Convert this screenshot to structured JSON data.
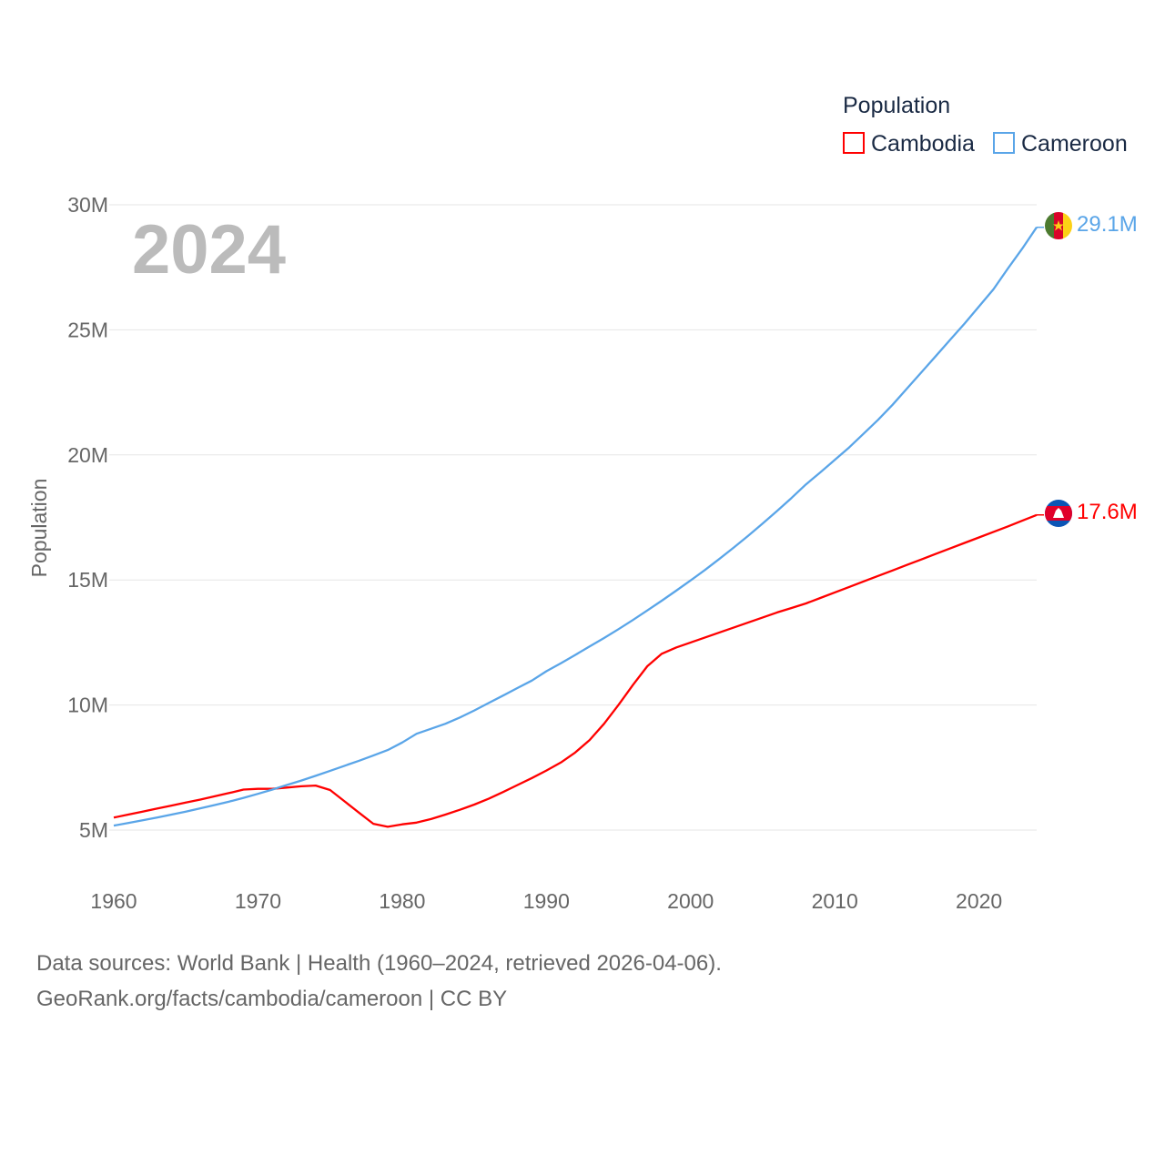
{
  "chart_data": {
    "type": "line",
    "ylabel": "Population",
    "xlabel": "",
    "year_watermark": "2024",
    "legend": {
      "title": "Population",
      "placement": "top-right"
    },
    "xlim": [
      1960,
      2024
    ],
    "ylim": [
      5000000,
      30000000
    ],
    "x_ticks": [
      "1960",
      "1970",
      "1980",
      "1990",
      "2000",
      "2010",
      "2020"
    ],
    "y_ticks": [
      {
        "value": 5000000,
        "label": "5M"
      },
      {
        "value": 10000000,
        "label": "10M"
      },
      {
        "value": 15000000,
        "label": "15M"
      },
      {
        "value": 20000000,
        "label": "20M"
      },
      {
        "value": 25000000,
        "label": "25M"
      },
      {
        "value": 30000000,
        "label": "30M"
      }
    ],
    "x_start": 1960,
    "unit": "millions",
    "series": [
      {
        "name": "Cambodia",
        "color": "#ff0000",
        "end_label": "17.6M",
        "flag": "cambodia-flag",
        "values": [
          5.5,
          5.62,
          5.74,
          5.86,
          5.98,
          6.1,
          6.22,
          6.35,
          6.48,
          6.62,
          6.65,
          6.65,
          6.7,
          6.75,
          6.78,
          6.6,
          6.15,
          5.7,
          5.25,
          5.13,
          5.23,
          5.3,
          5.44,
          5.62,
          5.81,
          6.02,
          6.25,
          6.52,
          6.8,
          7.08,
          7.38,
          7.7,
          8.1,
          8.6,
          9.25,
          10.0,
          10.8,
          11.55,
          12.05,
          12.3,
          12.5,
          12.7,
          12.9,
          13.1,
          13.3,
          13.5,
          13.7,
          13.88,
          14.06,
          14.28,
          14.5,
          14.72,
          14.94,
          15.16,
          15.38,
          15.6,
          15.82,
          16.04,
          16.26,
          16.48,
          16.7,
          16.92,
          17.14,
          17.37,
          17.6
        ]
      },
      {
        "name": "Cameroon",
        "color": "#5aa5e8",
        "end_label": "29.1M",
        "flag": "cameroon-flag",
        "values": [
          5.18,
          5.28,
          5.39,
          5.5,
          5.62,
          5.74,
          5.87,
          6.0,
          6.14,
          6.29,
          6.45,
          6.62,
          6.8,
          6.98,
          7.17,
          7.37,
          7.57,
          7.77,
          7.98,
          8.2,
          8.5,
          8.85,
          9.05,
          9.25,
          9.5,
          9.78,
          10.08,
          10.38,
          10.68,
          10.98,
          11.35,
          11.67,
          12.0,
          12.34,
          12.68,
          13.03,
          13.4,
          13.78,
          14.17,
          14.57,
          14.98,
          15.4,
          15.84,
          16.3,
          16.77,
          17.26,
          17.76,
          18.28,
          18.82,
          19.3,
          19.8,
          20.3,
          20.85,
          21.4,
          22.0,
          22.65,
          23.3,
          23.95,
          24.6,
          25.25,
          25.93,
          26.62,
          27.45,
          28.25,
          29.1
        ]
      }
    ]
  },
  "footer": {
    "line1": "Data sources: World Bank | Health (1960–2024, retrieved 2026-04-06).",
    "line2": "GeoRank.org/facts/cambodia/cameroon | CC BY"
  }
}
